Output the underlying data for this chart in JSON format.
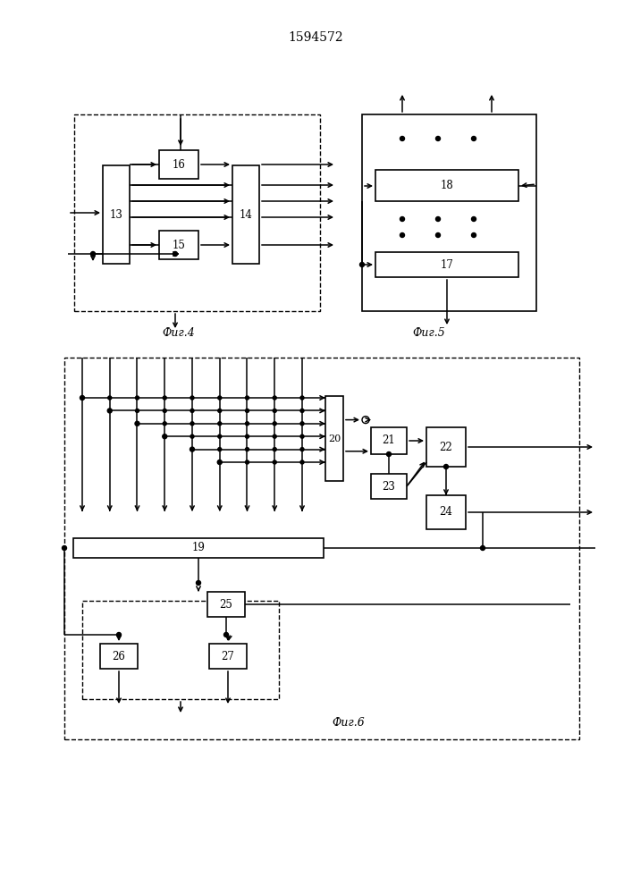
{
  "title": "1594572",
  "fig4_label": "Фиг.4",
  "fig5_label": "Фиг.5",
  "fig6_label": "Фиг.6",
  "bg_color": "#ffffff"
}
